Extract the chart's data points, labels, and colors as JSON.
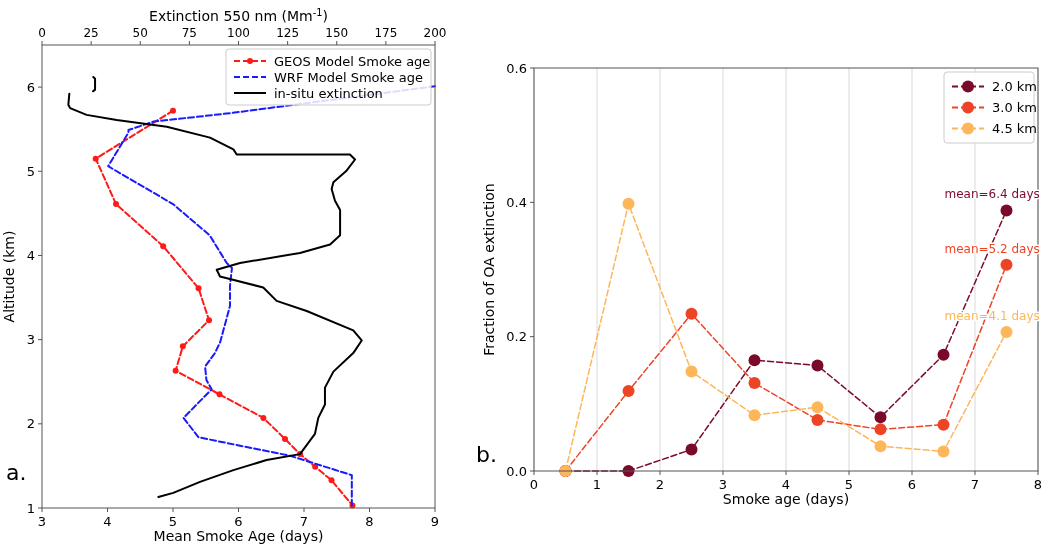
{
  "chart_data": [
    {
      "type": "line",
      "xlabel": "Mean Smoke Age (days)",
      "ylabel": "Altitude (km)",
      "x2label": "Extinction 550 nm (Mm$^{-1}$)",
      "xlim": [
        3,
        9
      ],
      "xticks": [
        3,
        4,
        5,
        6,
        7,
        8,
        9
      ],
      "x2lim": [
        0,
        200
      ],
      "x2ticks": [
        0,
        25,
        50,
        75,
        100,
        125,
        150,
        175,
        200
      ],
      "ylim": [
        1,
        6.5
      ],
      "yticks": [
        1,
        2,
        3,
        4,
        5,
        6
      ],
      "legend": "top right",
      "grid": false,
      "annotations": [
        "a."
      ],
      "series": [
        {
          "name": "GEOS Model Smoke age",
          "color": "#ff1a1a",
          "marker": "circle",
          "line_style": "dashed",
          "x": [
            5.0,
            3.82,
            4.13,
            4.85,
            5.39,
            5.55,
            5.15,
            5.04,
            5.71,
            6.38,
            6.71,
            6.94,
            7.17,
            7.42,
            7.74
          ],
          "values": [
            5.72,
            5.15,
            4.61,
            4.11,
            3.61,
            3.23,
            2.92,
            2.63,
            2.35,
            2.07,
            1.82,
            1.64,
            1.49,
            1.33,
            1.03
          ]
        },
        {
          "name": "WRF Model Smoke age",
          "color": "#1a1aff",
          "marker": "none",
          "line_style": "dashed",
          "x": [
            9.0,
            5.87,
            4.7,
            4.55,
            4.32,
            4.32,
            4.01,
            5.0,
            5.56,
            5.82,
            5.9,
            5.87,
            5.87,
            5.79,
            5.72,
            5.64,
            5.49,
            5.51,
            5.59,
            5.16,
            5.39,
            6.79,
            7.73,
            7.73
          ],
          "values": [
            6.01,
            5.69,
            5.59,
            5.55,
            5.49,
            5.46,
            5.06,
            4.61,
            4.24,
            3.91,
            3.85,
            3.64,
            3.4,
            3.17,
            2.97,
            2.84,
            2.68,
            2.52,
            2.41,
            2.07,
            1.84,
            1.62,
            1.39,
            1.03
          ]
        },
        {
          "name": "in-situ extinction",
          "color": "#000000",
          "marker": "none",
          "line_style": "solid",
          "axis": "x2",
          "x": [
            26.1,
            27,
            27,
            26,
            null,
            13.9,
            13.4,
            14.3,
            22.7,
            38.0,
            63.5,
            85.5,
            97.4,
            99.1,
            156.7,
            159.3,
            155.1,
            148.3,
            147.4,
            149.1,
            151.7,
            151.7,
            146.6,
            131.3,
            100.8,
            88.9,
            90.6,
            112.6,
            119.4,
            134.7,
            158.4,
            162.7,
            158.4,
            148.3,
            144.0,
            144.0,
            140.6,
            138.9,
            131.3,
            114.3,
            97.4,
            80.4,
            66.8,
            59.2
          ],
          "values": [
            6.12,
            6.1,
            5.97,
            5.95,
            null,
            5.92,
            5.79,
            5.75,
            5.67,
            5.61,
            5.53,
            5.4,
            5.26,
            5.2,
            5.2,
            5.14,
            5.01,
            4.87,
            4.79,
            4.65,
            4.54,
            4.24,
            4.13,
            4.03,
            3.91,
            3.83,
            3.75,
            3.62,
            3.46,
            3.34,
            3.11,
            2.99,
            2.84,
            2.62,
            2.43,
            2.23,
            2.07,
            1.88,
            1.64,
            1.57,
            1.45,
            1.31,
            1.18,
            1.13
          ]
        }
      ]
    },
    {
      "type": "line",
      "xlabel": "Smoke age (days)",
      "ylabel": "Fraction of OA extinction",
      "x": [
        0.5,
        1.5,
        2.5,
        3.5,
        4.5,
        5.5,
        6.5,
        7.5
      ],
      "xlim": [
        0,
        8
      ],
      "xticks": [
        0,
        1,
        2,
        3,
        4,
        5,
        6,
        7,
        8
      ],
      "ylim": [
        0,
        0.6
      ],
      "yticks": [
        {
          "value": 0,
          "label": "0.0"
        },
        0.2,
        0.4,
        0.6
      ],
      "grid": "x",
      "legend": "top right",
      "marker": "circle",
      "line_style": "dashed",
      "annotations": [
        "mean=6.4 days",
        "mean=5.2 days",
        "mean=4.1 days",
        "b."
      ],
      "series": [
        {
          "name": "2.0 km",
          "color": "#7a0a2a",
          "values": [
            0,
            0.0,
            0.032,
            0.165,
            0.157,
            0.08,
            0.173,
            0.388
          ]
        },
        {
          "name": "3.0 km",
          "color": "#ee4426",
          "values": [
            0,
            0.119,
            0.234,
            0.131,
            0.076,
            0.062,
            0.069,
            0.307
          ]
        },
        {
          "name": "4.5 km",
          "color": "#fdb659",
          "values": [
            0,
            0.398,
            0.148,
            0.083,
            0.095,
            0.037,
            0.029,
            0.207
          ]
        }
      ]
    }
  ]
}
